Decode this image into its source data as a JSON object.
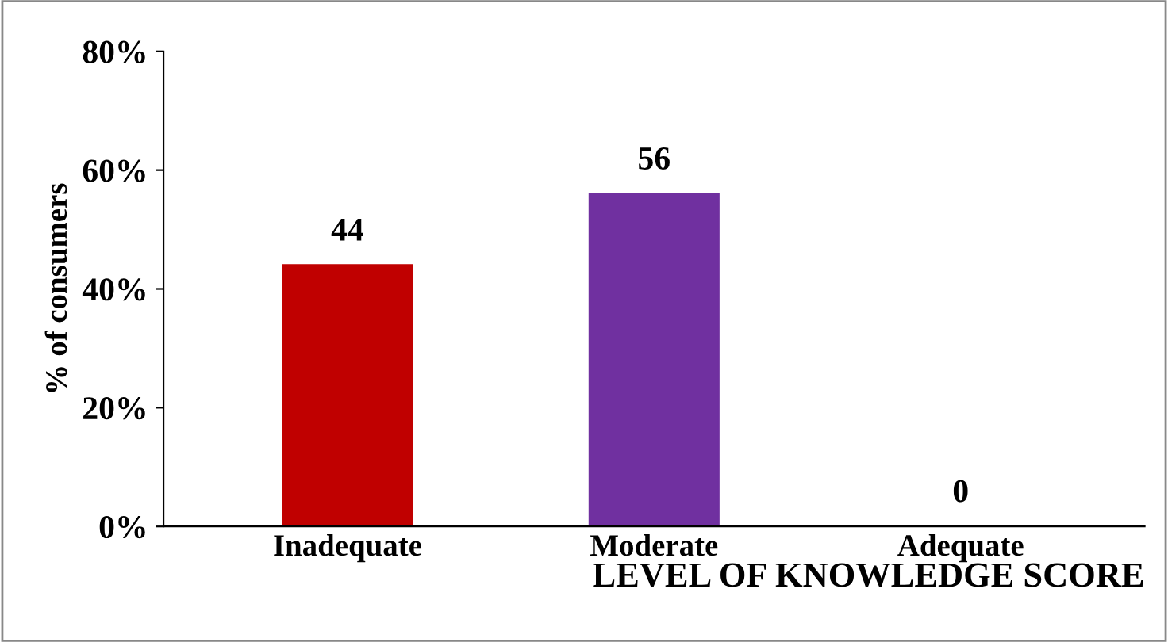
{
  "chart_data": {
    "type": "bar",
    "categories": [
      "Inadequate",
      "Moderate",
      "Adequate"
    ],
    "values": [
      44,
      56,
      0
    ],
    "colors": [
      "#c00000",
      "#7030a0",
      "#4f81bd"
    ],
    "ylim": [
      0,
      80
    ],
    "yticks": [
      {
        "value": 0,
        "label": "0%"
      },
      {
        "value": 20,
        "label": "20%"
      },
      {
        "value": 40,
        "label": "40%"
      },
      {
        "value": 60,
        "label": "60%"
      },
      {
        "value": 80,
        "label": "80%"
      }
    ],
    "xlabel": "LEVEL OF KNOWLEDGE SCORE",
    "ylabel": "% of consumers",
    "data_labels": true,
    "grid": false,
    "legend": false
  }
}
